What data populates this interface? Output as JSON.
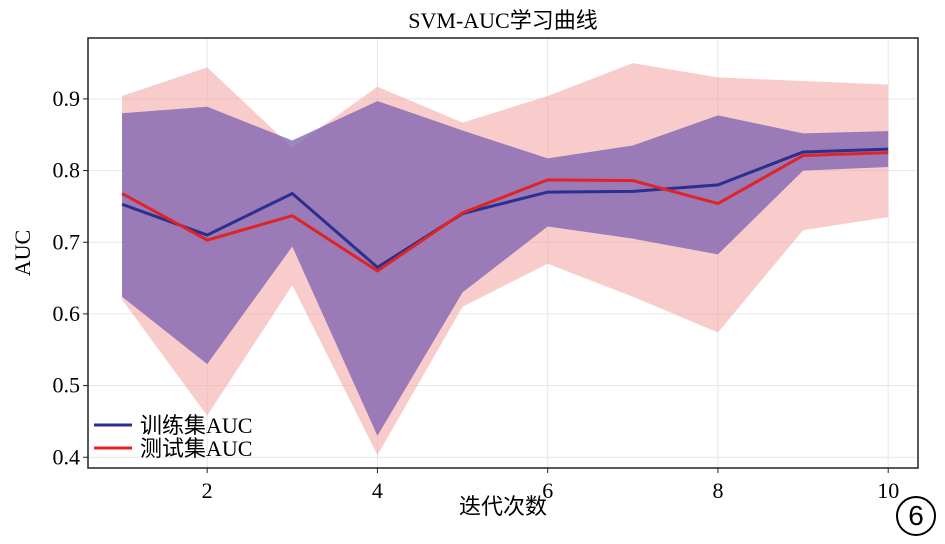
{
  "chart_data": {
    "type": "line",
    "title": "SVM-AUC学习曲线",
    "xlabel": "迭代次数",
    "ylabel": "AUC",
    "xlim": [
      0.6,
      10.35
    ],
    "ylim": [
      0.385,
      0.985
    ],
    "xticks": [
      2,
      4,
      6,
      8,
      10
    ],
    "yticks": [
      0.4,
      0.5,
      0.6,
      0.7,
      0.8,
      0.9
    ],
    "grid": true,
    "legend_position": "bottom-left",
    "x": [
      1,
      2,
      3,
      4,
      5,
      6,
      7,
      8,
      9,
      10
    ],
    "series": [
      {
        "name": "训练集AUC",
        "color": "#2b2f8f",
        "band_color": "#7a5fb0",
        "values": [
          0.753,
          0.71,
          0.768,
          0.665,
          0.74,
          0.77,
          0.771,
          0.78,
          0.826,
          0.83
        ],
        "upper": [
          0.88,
          0.889,
          0.842,
          0.897,
          0.856,
          0.817,
          0.835,
          0.877,
          0.852,
          0.855
        ],
        "lower": [
          0.624,
          0.53,
          0.694,
          0.43,
          0.63,
          0.722,
          0.705,
          0.683,
          0.8,
          0.805
        ]
      },
      {
        "name": "测试集AUC",
        "color": "#e02424",
        "band_color": "#f4a3a3",
        "values": [
          0.768,
          0.703,
          0.737,
          0.66,
          0.741,
          0.787,
          0.786,
          0.754,
          0.821,
          0.825
        ],
        "upper": [
          0.904,
          0.944,
          0.832,
          0.917,
          0.867,
          0.904,
          0.95,
          0.93,
          0.925,
          0.92
        ],
        "lower": [
          0.62,
          0.458,
          0.64,
          0.403,
          0.61,
          0.67,
          0.624,
          0.574,
          0.717,
          0.735
        ]
      }
    ]
  },
  "badge": "6"
}
